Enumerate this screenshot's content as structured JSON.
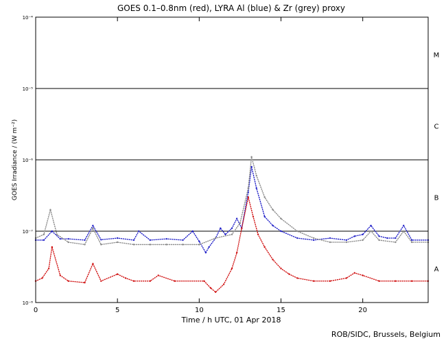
{
  "chart_data": {
    "type": "scatter",
    "title": "GOES 0.1–0.8nm (red), LYRA Al (blue) & Zr (grey) proxy",
    "xlabel": "Time / h UTC, 01 Apr 2018",
    "ylabel": "GOES Irradiance / (W m⁻²)",
    "xlim": [
      0,
      24
    ],
    "ylim": [
      1e-08,
      0.0001
    ],
    "yscale": "log",
    "x_ticks": [
      0,
      5,
      10,
      15,
      20
    ],
    "y_ticks": [
      {
        "value": 1e-08,
        "label": "10⁻⁸"
      },
      {
        "value": 1e-07,
        "label": "10⁻⁷"
      },
      {
        "value": 1e-06,
        "label": "10⁻⁶"
      },
      {
        "value": 1e-05,
        "label": "10⁻⁵"
      },
      {
        "value": 0.0001,
        "label": "10⁻⁴"
      }
    ],
    "flare_class_lines": [
      1e-07,
      1e-06,
      1e-05
    ],
    "flare_classes": [
      {
        "label": "A",
        "value": 3e-08
      },
      {
        "label": "B",
        "value": 3e-07
      },
      {
        "label": "C",
        "value": 3e-06
      },
      {
        "label": "M",
        "value": 3e-05
      }
    ],
    "series": [
      {
        "color": "#2020c8",
        "x": [
          0,
          0.5,
          1,
          1.5,
          2,
          3,
          3.5,
          4,
          5,
          6,
          6.3,
          7,
          8,
          9,
          9.6,
          10,
          10.4,
          10.6,
          11,
          11.3,
          11.6,
          12,
          12.3,
          12.6,
          13,
          13.2,
          13.5,
          14,
          14.5,
          15,
          16,
          17,
          18,
          19,
          19.5,
          20,
          20.5,
          21,
          21.5,
          22,
          22.5,
          23,
          24
        ],
        "y": [
          7.5e-08,
          7.5e-08,
          1e-07,
          7.8e-08,
          7.8e-08,
          7.5e-08,
          1.2e-07,
          7.6e-08,
          8e-08,
          7.5e-08,
          1e-07,
          7.5e-08,
          7.8e-08,
          7.5e-08,
          1e-07,
          7.2e-08,
          5e-08,
          6e-08,
          8e-08,
          1.1e-07,
          9e-08,
          1.1e-07,
          1.5e-07,
          1.1e-07,
          3.5e-07,
          8e-07,
          4e-07,
          1.6e-07,
          1.2e-07,
          1e-07,
          8e-08,
          7.5e-08,
          8e-08,
          7.5e-08,
          8.5e-08,
          9e-08,
          1.2e-07,
          8.5e-08,
          8e-08,
          8e-08,
          1.2e-07,
          7.5e-08,
          7.5e-08
        ]
      },
      {
        "color": "#888888",
        "x": [
          0,
          0.5,
          0.9,
          1.3,
          2,
          3,
          3.5,
          4,
          5,
          6,
          7,
          8,
          9,
          10,
          11,
          12,
          12.5,
          13,
          13.2,
          13.5,
          14,
          14.5,
          15,
          16,
          17,
          18,
          19,
          20,
          20.5,
          21,
          22,
          22.5,
          23,
          24
        ],
        "y": [
          8e-08,
          9e-08,
          2e-07,
          9e-08,
          7e-08,
          6.5e-08,
          1.1e-07,
          6.5e-08,
          7e-08,
          6.5e-08,
          6.5e-08,
          6.5e-08,
          6.5e-08,
          6.5e-08,
          8e-08,
          9e-08,
          1.3e-07,
          4e-07,
          1.1e-06,
          6e-07,
          3e-07,
          2e-07,
          1.5e-07,
          1e-07,
          8e-08,
          7e-08,
          7e-08,
          7.5e-08,
          1e-07,
          7.5e-08,
          7e-08,
          1e-07,
          7e-08,
          7e-08
        ]
      },
      {
        "color": "#d01010",
        "x": [
          0,
          0.4,
          0.8,
          1,
          1.5,
          2,
          3,
          3.5,
          4,
          5,
          5.5,
          6,
          7,
          7.5,
          8.5,
          10.3,
          10.7,
          11,
          11.5,
          12,
          12.3,
          12.6,
          13,
          13.3,
          13.6,
          14,
          14.5,
          15,
          15.5,
          16,
          17,
          18,
          19,
          19.5,
          20,
          21,
          22,
          23,
          24
        ],
        "y": [
          2e-08,
          2.2e-08,
          3e-08,
          6e-08,
          2.4e-08,
          2e-08,
          1.9e-08,
          3.5e-08,
          2e-08,
          2.5e-08,
          2.2e-08,
          2e-08,
          2e-08,
          2.4e-08,
          2e-08,
          2e-08,
          1.6e-08,
          1.4e-08,
          1.8e-08,
          3e-08,
          5e-08,
          1.1e-07,
          3e-07,
          1.6e-07,
          9e-08,
          6e-08,
          4e-08,
          3e-08,
          2.5e-08,
          2.2e-08,
          2e-08,
          2e-08,
          2.2e-08,
          2.6e-08,
          2.4e-08,
          2e-08,
          2e-08,
          2e-08,
          2e-08
        ]
      }
    ],
    "footer": "ROB/SIDC, Brussels, Belgium"
  }
}
